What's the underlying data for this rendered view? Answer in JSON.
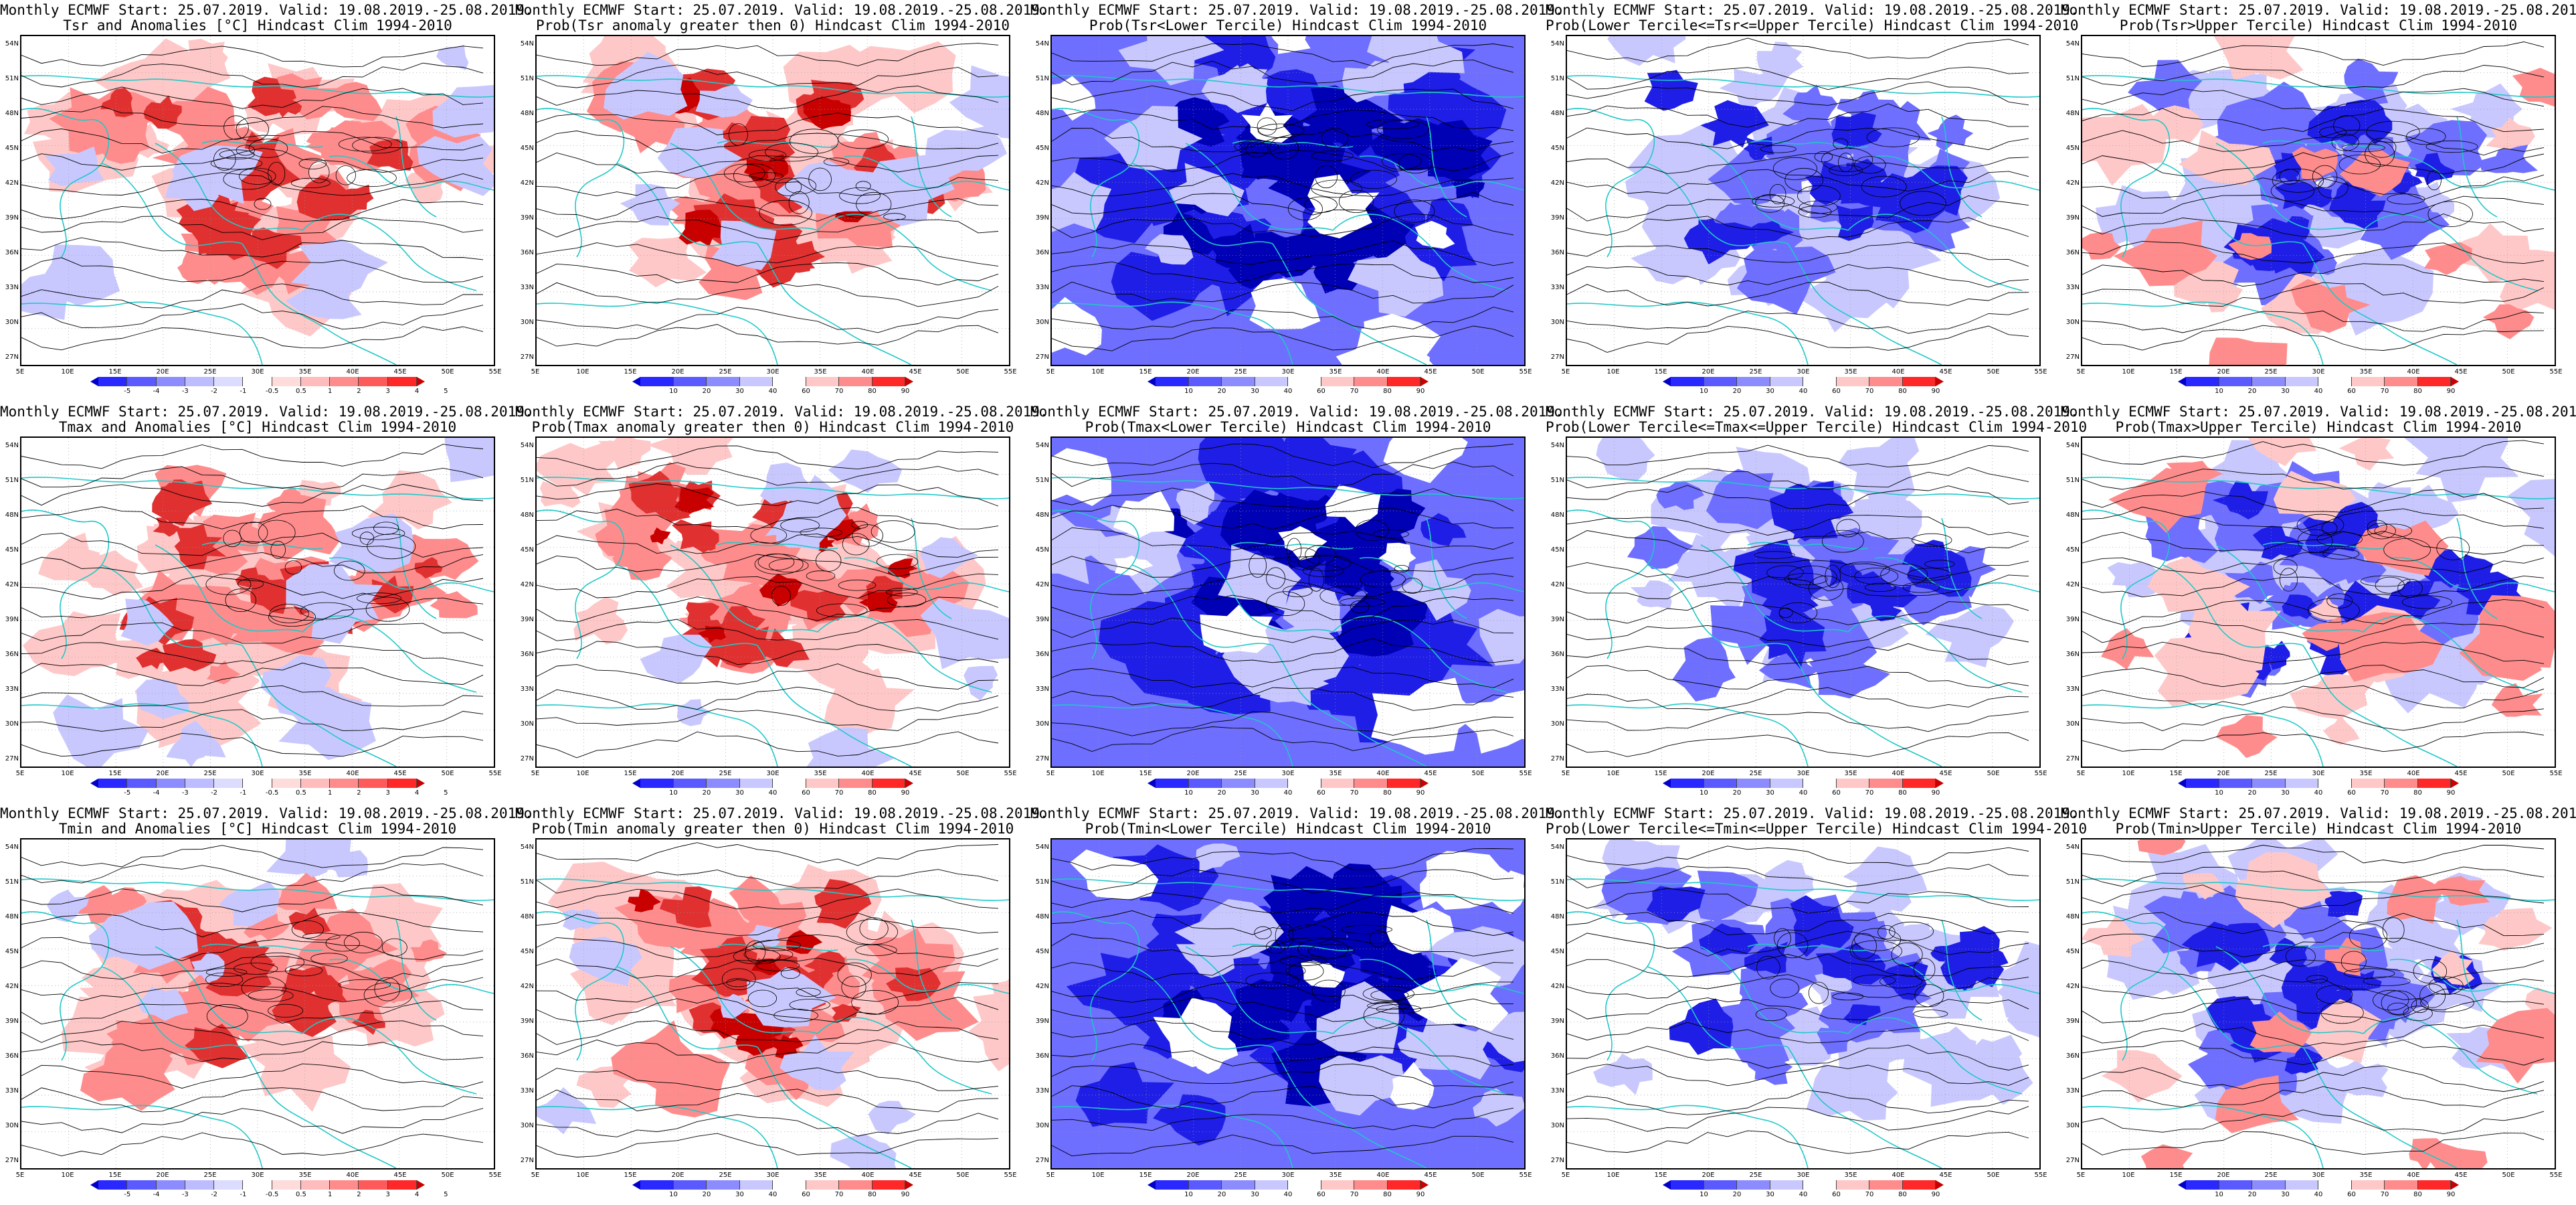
{
  "row_titles": {
    "start_line": "Monthly ECMWF Start: 25.07.2019. Valid: 19.08.2019.-25.08.2019."
  },
  "panels": [
    {
      "line2": "Tsr and Anomalies [°C] Hindcast Clim 1994-2010",
      "scheme": "anomaly"
    },
    {
      "line2": "Prob(Tsr anomaly greater then 0) Hindcast Clim 1994-2010",
      "scheme": "prob_warm"
    },
    {
      "line2": "Prob(Tsr<Lower Tercile) Hindcast Clim 1994-2010",
      "scheme": "prob_lower"
    },
    {
      "line2": "Prob(Lower Tercile<=Tsr<=Upper Tercile) Hindcast Clim 1994-2010",
      "scheme": "prob_middle"
    },
    {
      "line2": "Prob(Tsr>Upper Tercile) Hindcast Clim 1994-2010",
      "scheme": "prob_upper"
    },
    {
      "line2": "Tmax and Anomalies [°C] Hindcast Clim 1994-2010",
      "scheme": "anomaly"
    },
    {
      "line2": "Prob(Tmax anomaly greater then 0) Hindcast Clim 1994-2010",
      "scheme": "prob_warm"
    },
    {
      "line2": "Prob(Tmax<Lower Tercile) Hindcast Clim 1994-2010",
      "scheme": "prob_lower"
    },
    {
      "line2": "Prob(Lower Tercile<=Tmax<=Upper Tercile) Hindcast Clim 1994-2010",
      "scheme": "prob_middle"
    },
    {
      "line2": "Prob(Tmax>Upper Tercile) Hindcast Clim 1994-2010",
      "scheme": "prob_upper"
    },
    {
      "line2": "Tmin and Anomalies [°C] Hindcast Clim 1994-2010",
      "scheme": "anomaly"
    },
    {
      "line2": "Prob(Tmin anomaly greater then 0) Hindcast Clim 1994-2010",
      "scheme": "prob_warm"
    },
    {
      "line2": "Prob(Tmin<Lower Tercile) Hindcast Clim 1994-2010",
      "scheme": "prob_lower"
    },
    {
      "line2": "Prob(Lower Tercile<=Tmin<=Upper Tercile) Hindcast Clim 1994-2010",
      "scheme": "prob_middle"
    },
    {
      "line2": "Prob(Tmin>Upper Tercile) Hindcast Clim 1994-2010",
      "scheme": "prob_upper"
    }
  ],
  "axes": {
    "lat_labels": [
      "54N",
      "51N",
      "48N",
      "45N",
      "42N",
      "39N",
      "36N",
      "33N",
      "30N",
      "27N"
    ],
    "lon_labels": [
      "5E",
      "10E",
      "15E",
      "20E",
      "25E",
      "30E",
      "35E",
      "40E",
      "45E",
      "50E",
      "55E"
    ]
  },
  "colorbars": {
    "anomaly": {
      "ticks": [
        "-5",
        "-4",
        "-3",
        "-2",
        "-1",
        "-0.5",
        "0.5",
        "1",
        "2",
        "3",
        "4",
        "5"
      ],
      "colors": [
        "#0000c8",
        "#2828ff",
        "#5a5aff",
        "#8c8cff",
        "#bcbcff",
        "#dcdcff",
        "#ffffff",
        "#ffdcdc",
        "#ffbcbc",
        "#ff8c8c",
        "#ff5a5a",
        "#ff2828",
        "#c80000"
      ]
    },
    "probability": {
      "ticks": [
        "10",
        "20",
        "30",
        "40",
        "60",
        "70",
        "80",
        "90"
      ],
      "colors": [
        "#0000c8",
        "#2828ff",
        "#5a5aff",
        "#8c8cff",
        "#c8c8ff",
        "#ffffff",
        "#ffc8c8",
        "#ff8c8c",
        "#ff2828",
        "#c80000"
      ]
    }
  },
  "colors": {
    "coast": "#20c8c8",
    "contour": "#000000",
    "warm_fill_light": "#ffc8c8",
    "warm_fill_mid": "#ff8c8c",
    "warm_fill_dark": "#e03030",
    "cold_fill_light": "#c8c8ff",
    "cold_fill_mid": "#6e6eff",
    "cold_fill_dark": "#1e1ee6",
    "cold_fill_deep": "#0000b4"
  }
}
